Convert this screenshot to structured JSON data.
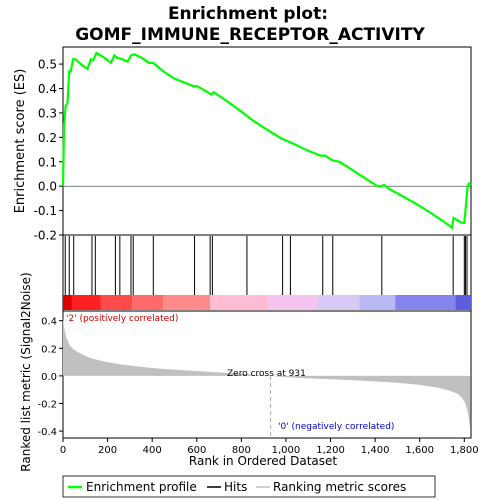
{
  "title_line1": "Enrichment plot:",
  "title_line2": "GOMF_IMMUNE_RECEPTOR_ACTIVITY",
  "chart_data": [
    {
      "type": "line",
      "panel": "enrichment",
      "ylabel": "Enrichment score (ES)",
      "ylim": [
        -0.2,
        0.57
      ],
      "xlim": [
        0,
        1830
      ],
      "yticks": [
        -0.2,
        -0.1,
        0.0,
        0.1,
        0.2,
        0.3,
        0.4,
        0.5
      ],
      "ytick_labels": [
        "-0.2",
        "-0.1",
        "0.0",
        "0.1",
        "0.2",
        "0.3",
        "0.4",
        "0.5"
      ],
      "grid": false,
      "series": [
        {
          "name": "Enrichment profile",
          "color": "#00ff00",
          "x": [
            0,
            5,
            12,
            20,
            28,
            35,
            45,
            55,
            80,
            110,
            125,
            135,
            150,
            180,
            215,
            230,
            245,
            265,
            290,
            305,
            320,
            355,
            385,
            405,
            450,
            500,
            585,
            600,
            630,
            665,
            675,
            700,
            740,
            800,
            850,
            900,
            980,
            1020,
            1100,
            1155,
            1175,
            1210,
            1240,
            1300,
            1350,
            1410,
            1430,
            1440,
            1460,
            1520,
            1580,
            1650,
            1700,
            1745,
            1752,
            1770,
            1790,
            1800,
            1805,
            1810,
            1815,
            1820,
            1830
          ],
          "y": [
            0.0,
            0.25,
            0.33,
            0.34,
            0.47,
            0.47,
            0.52,
            0.52,
            0.5,
            0.48,
            0.52,
            0.515,
            0.545,
            0.53,
            0.505,
            0.535,
            0.525,
            0.52,
            0.51,
            0.535,
            0.54,
            0.525,
            0.505,
            0.505,
            0.47,
            0.44,
            0.41,
            0.41,
            0.395,
            0.375,
            0.385,
            0.37,
            0.345,
            0.305,
            0.27,
            0.24,
            0.195,
            0.18,
            0.145,
            0.125,
            0.125,
            0.105,
            0.1,
            0.065,
            0.035,
            0.0,
            0.0,
            0.005,
            -0.01,
            -0.04,
            -0.07,
            -0.11,
            -0.14,
            -0.17,
            -0.13,
            -0.14,
            -0.15,
            -0.15,
            -0.1,
            -0.05,
            0.0,
            0.01,
            0.005
          ]
        }
      ]
    },
    {
      "type": "hits",
      "panel": "hits",
      "name": "Hits",
      "xlim": [
        0,
        1830
      ],
      "hit_positions": [
        10,
        28,
        48,
        130,
        145,
        235,
        255,
        305,
        315,
        405,
        590,
        660,
        670,
        825,
        985,
        1020,
        1165,
        1210,
        1430,
        1750,
        1800,
        1805,
        1812
      ],
      "heatbar_colors": [
        "#dd0000",
        "#ff2020",
        "#ff4a4a",
        "#ff6a6a",
        "#ff8a8a",
        "#ffbcd4",
        "#f4c4ee",
        "#d8c8f4",
        "#b8b8f4",
        "#8484ec",
        "#5c5cdc",
        "#2a0ad0"
      ],
      "heatbar_breaks": [
        0,
        40,
        170,
        310,
        450,
        660,
        920,
        1140,
        1330,
        1490,
        1760,
        1830
      ]
    },
    {
      "type": "area",
      "panel": "ranked_metric",
      "name": "Ranking metric scores",
      "ylabel": "Ranked list metric (Signal2Noise)",
      "xlabel": "Rank in Ordered Dataset",
      "ylim": [
        -0.45,
        0.47
      ],
      "xlim": [
        0,
        1830
      ],
      "yticks": [
        -0.4,
        -0.2,
        0.0,
        0.2,
        0.4
      ],
      "ytick_labels": [
        "-0.4",
        "-0.2",
        "0.0",
        "0.2",
        "0.4"
      ],
      "xticks": [
        0,
        200,
        400,
        600,
        800,
        1000,
        1200,
        1400,
        1600,
        1800
      ],
      "xtick_labels": [
        "0",
        "200",
        "400",
        "600",
        "800",
        "1,000",
        "1,200",
        "1,400",
        "1,600",
        "1,800"
      ],
      "x": [
        0,
        5,
        15,
        30,
        50,
        80,
        120,
        180,
        250,
        350,
        450,
        550,
        650,
        750,
        850,
        931,
        1000,
        1100,
        1200,
        1300,
        1400,
        1500,
        1600,
        1680,
        1730,
        1770,
        1790,
        1805,
        1815,
        1822,
        1828
      ],
      "values": [
        0.42,
        0.35,
        0.28,
        0.22,
        0.19,
        0.16,
        0.13,
        0.105,
        0.085,
        0.065,
        0.05,
        0.04,
        0.03,
        0.02,
        0.01,
        0.0,
        -0.01,
        -0.018,
        -0.025,
        -0.032,
        -0.04,
        -0.05,
        -0.065,
        -0.085,
        -0.105,
        -0.13,
        -0.16,
        -0.2,
        -0.26,
        -0.33,
        -0.41
      ],
      "fill_color": "#c0c0c0",
      "positive_label": "'2' (positively correlated)",
      "negative_label": "'0' (negatively correlated)",
      "zero_cross_label": "Zero cross at 931",
      "zero_cross": 931
    }
  ],
  "legend": [
    {
      "label": "Enrichment profile",
      "color": "#00ff00"
    },
    {
      "label": "Hits",
      "color": "#000000"
    },
    {
      "label": "Ranking metric scores",
      "color": "#c0c0c0"
    }
  ]
}
